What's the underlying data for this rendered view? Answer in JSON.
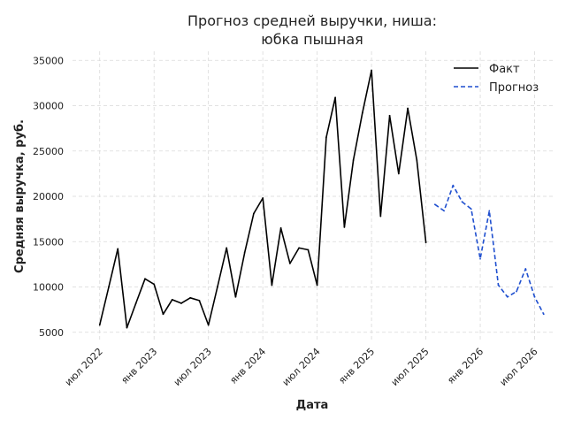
{
  "chart_data": {
    "type": "line",
    "title": [
      "Прогноз средней выручки, ниша:",
      "юбка пышная"
    ],
    "xlabel": "Дата",
    "ylabel": "Средняя выручка, руб.",
    "ylim": [
      4000,
      36000
    ],
    "yticks": [
      5000,
      10000,
      15000,
      20000,
      25000,
      30000,
      35000
    ],
    "xlim": [
      "2022-04",
      "2026-09"
    ],
    "xticks": [
      {
        "date": "2022-07",
        "label": "июл 2022"
      },
      {
        "date": "2023-01",
        "label": "янв 2023"
      },
      {
        "date": "2023-07",
        "label": "июл 2023"
      },
      {
        "date": "2024-01",
        "label": "янв 2024"
      },
      {
        "date": "2024-07",
        "label": "июл 2024"
      },
      {
        "date": "2025-01",
        "label": "янв 2025"
      },
      {
        "date": "2025-07",
        "label": "июл 2025"
      },
      {
        "date": "2026-01",
        "label": "янв 2026"
      },
      {
        "date": "2026-07",
        "label": "июл 2026"
      }
    ],
    "grid": true,
    "legend_position": "top-right",
    "series": [
      {
        "name": "Факт",
        "color": "#000000",
        "style": "solid",
        "x": [
          "2022-07",
          "2022-08",
          "2022-09",
          "2022-10",
          "2022-11",
          "2022-12",
          "2023-01",
          "2023-02",
          "2023-03",
          "2023-04",
          "2023-05",
          "2023-06",
          "2023-07",
          "2023-08",
          "2023-09",
          "2023-10",
          "2023-11",
          "2023-12",
          "2024-01",
          "2024-02",
          "2024-03",
          "2024-04",
          "2024-05",
          "2024-06",
          "2024-07",
          "2024-08",
          "2024-09",
          "2024-10",
          "2024-11",
          "2024-12",
          "2025-01",
          "2025-02",
          "2025-03",
          "2025-04",
          "2025-05",
          "2025-06",
          "2025-07"
        ],
        "y": [
          5800,
          10000,
          14200,
          5500,
          8200,
          10900,
          10300,
          7000,
          8600,
          8200,
          8800,
          8500,
          5800,
          10000,
          14300,
          8900,
          13800,
          18100,
          19800,
          10200,
          16500,
          12600,
          14300,
          14100,
          10200,
          26500,
          30900,
          16600,
          24000,
          29200,
          33900,
          17800,
          28900,
          22500,
          29700,
          24000,
          14900
        ]
      },
      {
        "name": "Прогноз",
        "color": "#1f4fcf",
        "style": "dashed",
        "x": [
          "2025-08",
          "2025-09",
          "2025-10",
          "2025-11",
          "2025-12",
          "2026-01",
          "2026-02",
          "2026-03",
          "2026-04",
          "2026-05",
          "2026-06",
          "2026-07",
          "2026-08"
        ],
        "y": [
          19100,
          18400,
          21200,
          19400,
          18600,
          13100,
          18400,
          10200,
          8900,
          9500,
          12000,
          8900,
          7000
        ]
      }
    ]
  }
}
